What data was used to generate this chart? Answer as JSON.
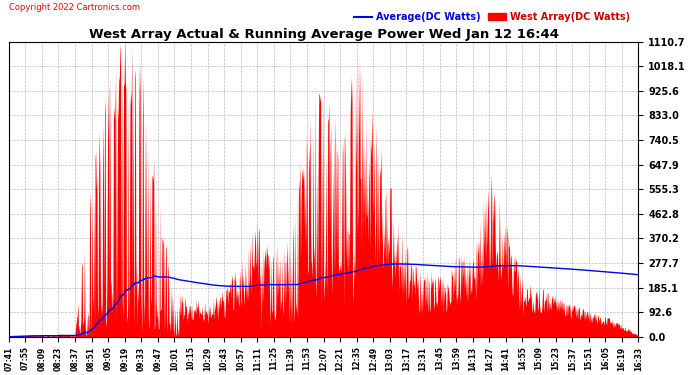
{
  "title": "West Array Actual & Running Average Power Wed Jan 12 16:44",
  "copyright": "Copyright 2022 Cartronics.com",
  "legend_avg": "Average(DC Watts)",
  "legend_west": "West Array(DC Watts)",
  "ymax": 1110.7,
  "ymin": 0.0,
  "yticks": [
    0.0,
    92.6,
    185.1,
    277.7,
    370.2,
    462.8,
    555.3,
    647.9,
    740.5,
    833.0,
    925.6,
    1018.1,
    1110.7
  ],
  "background_color": "#ffffff",
  "fill_color": "#ff0000",
  "avg_line_color": "#0000ee",
  "title_color": "#000000",
  "copyright_color": "#ff0000",
  "legend_avg_color": "#0000ee",
  "legend_west_color": "#cc0000",
  "grid_color": "#bbbbbb",
  "xtick_labels": [
    "07:41",
    "07:55",
    "08:09",
    "08:23",
    "08:37",
    "08:51",
    "09:05",
    "09:19",
    "09:33",
    "09:47",
    "10:01",
    "10:15",
    "10:29",
    "10:43",
    "10:57",
    "11:11",
    "11:25",
    "11:39",
    "11:53",
    "12:07",
    "12:21",
    "12:35",
    "12:49",
    "13:03",
    "13:17",
    "13:31",
    "13:45",
    "13:59",
    "14:13",
    "14:27",
    "14:41",
    "14:55",
    "15:09",
    "15:23",
    "15:37",
    "15:51",
    "16:05",
    "16:19",
    "16:33"
  ],
  "west_power_keypoints": [
    [
      0,
      0
    ],
    [
      1,
      5
    ],
    [
      2,
      8
    ],
    [
      3,
      10
    ],
    [
      4,
      12
    ],
    [
      5,
      600
    ],
    [
      6,
      900
    ],
    [
      7,
      1100
    ],
    [
      8,
      950
    ],
    [
      9,
      500
    ],
    [
      10,
      130
    ],
    [
      11,
      100
    ],
    [
      12,
      90
    ],
    [
      13,
      120
    ],
    [
      14,
      200
    ],
    [
      15,
      300
    ],
    [
      16,
      370
    ],
    [
      17,
      350
    ],
    [
      18,
      800
    ],
    [
      19,
      900
    ],
    [
      20,
      700
    ],
    [
      21,
      1110
    ],
    [
      22,
      850
    ],
    [
      23,
      600
    ],
    [
      24,
      350
    ],
    [
      25,
      250
    ],
    [
      26,
      280
    ],
    [
      27,
      300
    ],
    [
      28,
      270
    ],
    [
      29,
      590
    ],
    [
      30,
      400
    ],
    [
      31,
      200
    ],
    [
      32,
      180
    ],
    [
      33,
      160
    ],
    [
      34,
      130
    ],
    [
      35,
      100
    ],
    [
      36,
      80
    ],
    [
      37,
      50
    ],
    [
      38,
      5
    ]
  ]
}
